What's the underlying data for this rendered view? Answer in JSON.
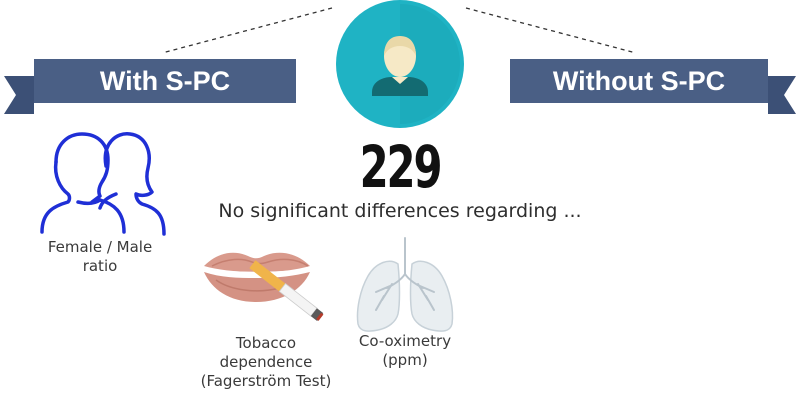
{
  "left_ribbon": {
    "label": "With S-PC"
  },
  "right_ribbon": {
    "label": "Without S-PC"
  },
  "center": {
    "icon": "person-icon",
    "count": "229",
    "subtitle": "No significant differences regarding ..."
  },
  "items": [
    {
      "icon": "female-male-silhouette-icon",
      "caption_lines": [
        "Female / Male",
        "ratio"
      ]
    },
    {
      "icon": "lips-cigarette-icon",
      "caption_lines": [
        "Tobacco",
        "dependence",
        "(Fagerström Test)"
      ]
    },
    {
      "icon": "lungs-icon",
      "caption_lines": [
        "Co-oximetry",
        "(ppm)"
      ]
    }
  ],
  "colors": {
    "ribbon": "#4a5f85",
    "ribbon_dark": "#2d3e5c",
    "circle": "#1fb3c4",
    "silhouette_stroke": "#1f2fd6"
  }
}
